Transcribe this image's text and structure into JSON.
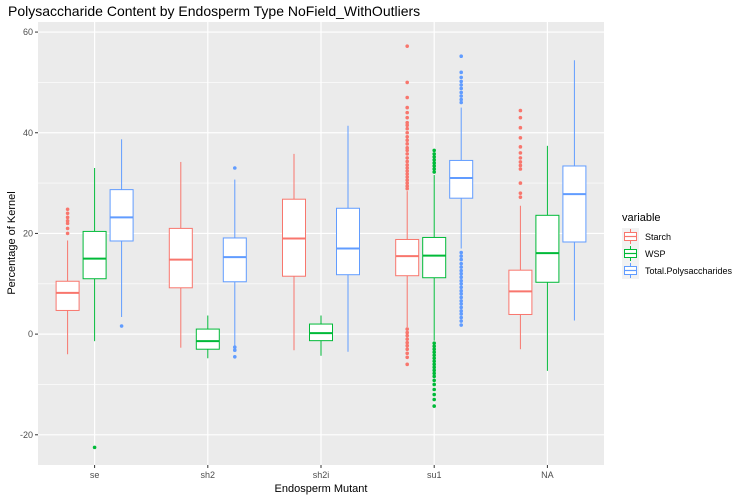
{
  "chart_data": {
    "type": "boxplot",
    "title": "Polysaccharide Content by Endosperm Type NoField_WithOutliers",
    "xlabel": "Endosperm Mutant",
    "ylabel": "Percentage of Kernel",
    "categories": [
      "se",
      "sh2",
      "sh2i",
      "su1",
      "NA"
    ],
    "ylim": [
      -26,
      62
    ],
    "yticks": [
      -20,
      0,
      20,
      40,
      60
    ],
    "grid": true,
    "legend": {
      "title": "variable",
      "placement": "right",
      "entries": [
        "Starch",
        "WSP",
        "Total.Polysaccharides"
      ]
    },
    "series": [
      {
        "name": "Starch",
        "color": "#F8766D",
        "boxes": [
          {
            "category": "se",
            "lower_whisker": -4,
            "q1": 4.7,
            "median": 8.2,
            "q3": 10.5,
            "upper_whisker": 18.6,
            "outliers": [
              20,
              21,
              22,
              22.5,
              23.2,
              24,
              24.8
            ]
          },
          {
            "category": "sh2",
            "lower_whisker": -2.7,
            "q1": 9.2,
            "median": 14.8,
            "q3": 21,
            "upper_whisker": 34.2,
            "outliers": []
          },
          {
            "category": "sh2i",
            "lower_whisker": -3.2,
            "q1": 11.5,
            "median": 19,
            "q3": 26.8,
            "upper_whisker": 35.8,
            "outliers": []
          },
          {
            "category": "su1",
            "lower_whisker": 1.4,
            "q1": 11.6,
            "median": 15.5,
            "q3": 18.8,
            "upper_whisker": 28.4,
            "outliers": [
              57.2,
              50,
              47,
              45,
              44,
              43,
              42,
              41.5,
              40.8,
              40,
              39.2,
              38.5,
              37.8,
              37,
              36.5,
              35.8,
              35,
              34.3,
              33.6,
              33,
              32.4,
              31.8,
              31.2,
              30.6,
              30,
              29.4,
              28.9,
              1,
              0.3,
              -0.3,
              -1,
              -1.7,
              -2.3,
              -3,
              -3.8,
              -4.6,
              -6
            ]
          },
          {
            "category": "NA",
            "lower_whisker": -3,
            "q1": 3.9,
            "median": 8.5,
            "q3": 12.7,
            "upper_whisker": 25.5,
            "outliers": [
              44.4,
              43,
              41,
              39,
              37.2,
              36,
              35,
              34.2,
              33.5,
              32.8,
              30,
              28,
              27.2
            ]
          }
        ]
      },
      {
        "name": "WSP",
        "color": "#00BA38",
        "boxes": [
          {
            "category": "se",
            "lower_whisker": -1.4,
            "q1": 11,
            "median": 15,
            "q3": 20.4,
            "upper_whisker": 33,
            "outliers": [
              -22.5
            ]
          },
          {
            "category": "sh2",
            "lower_whisker": -4.8,
            "q1": -3,
            "median": -1.4,
            "q3": 1,
            "upper_whisker": 3.7,
            "outliers": []
          },
          {
            "category": "sh2i",
            "lower_whisker": -4.3,
            "q1": -1.3,
            "median": 0.2,
            "q3": 2,
            "upper_whisker": 3.7,
            "outliers": []
          },
          {
            "category": "su1",
            "lower_whisker": -1.3,
            "q1": 11.2,
            "median": 15.6,
            "q3": 19.2,
            "upper_whisker": 31.6,
            "outliers": [
              36.5,
              35.8,
              35.2,
              34.6,
              34,
              33.4,
              32.8,
              32.2,
              -1.8,
              -2.4,
              -3,
              -3.6,
              -4.2,
              -4.8,
              -5.4,
              -6,
              -6.6,
              -7.2,
              -7.8,
              -8.4,
              -9.2,
              -10,
              -11,
              -12,
              -13,
              -14.3
            ]
          },
          {
            "category": "NA",
            "lower_whisker": -7.3,
            "q1": 10.3,
            "median": 16.1,
            "q3": 23.6,
            "upper_whisker": 37.4,
            "outliers": []
          }
        ]
      },
      {
        "name": "Total.Polysaccharides",
        "color": "#619CFF",
        "boxes": [
          {
            "category": "se",
            "lower_whisker": 3.4,
            "q1": 18.5,
            "median": 23.2,
            "q3": 28.7,
            "upper_whisker": 38.7,
            "outliers": [
              1.6
            ]
          },
          {
            "category": "sh2",
            "lower_whisker": -2.3,
            "q1": 10.4,
            "median": 15.3,
            "q3": 19.1,
            "upper_whisker": 30.7,
            "outliers": [
              33,
              -2.6,
              -3.2,
              -4.5
            ]
          },
          {
            "category": "sh2i",
            "lower_whisker": -3.5,
            "q1": 11.8,
            "median": 17,
            "q3": 25,
            "upper_whisker": 41.4,
            "outliers": []
          },
          {
            "category": "su1",
            "lower_whisker": 17,
            "q1": 27,
            "median": 31,
            "q3": 34.5,
            "upper_whisker": 45,
            "outliers": [
              55.2,
              52,
              51,
              50.2,
              49.5,
              48.8,
              48,
              47.3,
              46.6,
              46,
              16.2,
              15.5,
              14.8,
              14,
              13.3,
              12.6,
              12,
              11.3,
              10.6,
              10,
              9.3,
              8.6,
              8,
              7.3,
              6.6,
              6,
              5.3,
              4.6,
              4,
              3.3,
              2.6,
              1.8
            ]
          },
          {
            "category": "NA",
            "lower_whisker": 2.7,
            "q1": 18.3,
            "median": 27.8,
            "q3": 33.4,
            "upper_whisker": 54.4,
            "outliers": []
          }
        ]
      }
    ]
  }
}
